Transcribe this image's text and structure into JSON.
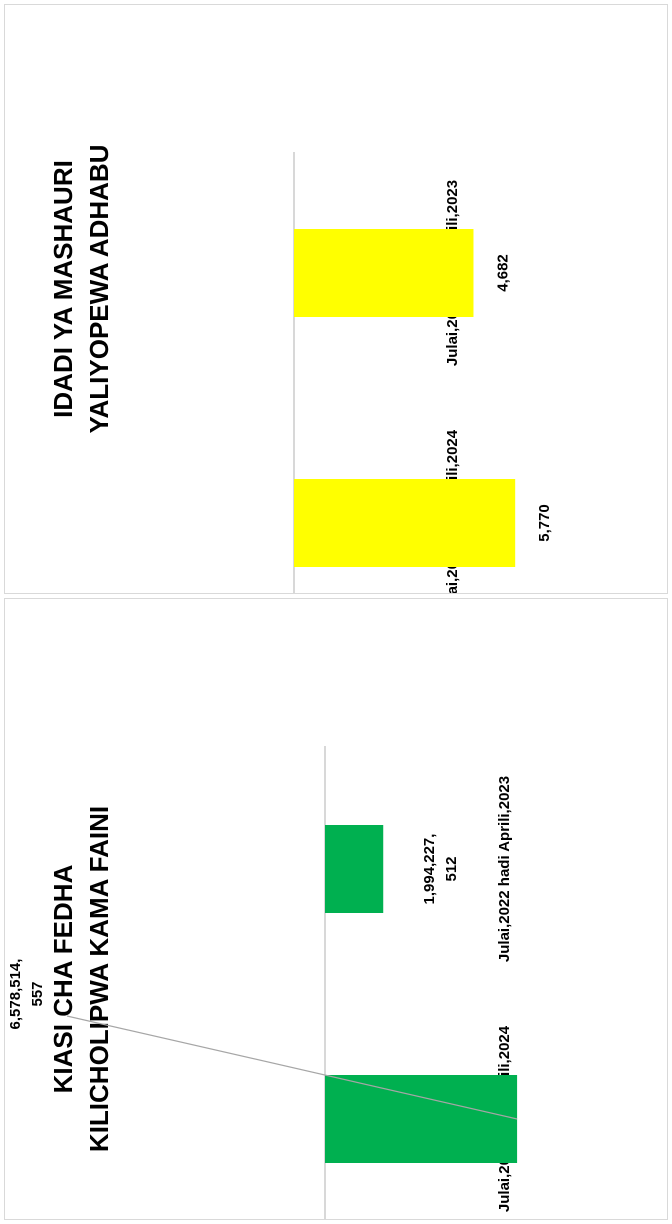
{
  "chart_data": [
    {
      "type": "bar",
      "orientation": "rotated-90-ccw",
      "title_lines": [
        "IDADI YA MASHAURI",
        "YALIYOPEWA ADHABU"
      ],
      "categories": [
        "Julai,2022 hadi Aprili,2023",
        "Julai,2023 hadi Aprili,2024"
      ],
      "values": [
        4682,
        5770
      ],
      "data_labels": [
        "4,682",
        "5,770"
      ],
      "bar_color": "#FFFF00",
      "ylim": [
        0,
        6000
      ],
      "grid": false,
      "legend": "none"
    },
    {
      "type": "bar",
      "orientation": "rotated-90-ccw",
      "title_lines": [
        "KIASI CHA FEDHA",
        "KILICHOLIPWA KAMA FAINI"
      ],
      "categories": [
        "Julai,2022 hadi Aprili,2023",
        "Julai,2023 hadi Aprili,2024"
      ],
      "values": [
        1994227512,
        6578514557
      ],
      "data_labels": [
        [
          "1,994,227,",
          "512"
        ],
        [
          "6,578,514,",
          "557"
        ]
      ],
      "bar_color": "#00B050",
      "ylim": [
        0,
        10000000000
      ],
      "grid": false,
      "legend": "none"
    }
  ]
}
